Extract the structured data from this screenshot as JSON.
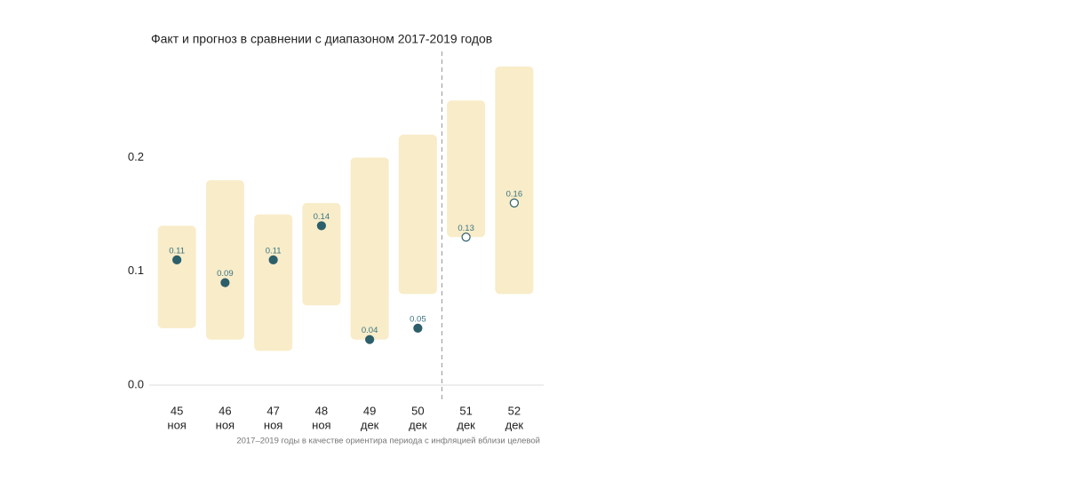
{
  "chart_data": {
    "type": "range",
    "title": "Факт и прогноз в сравнении с диапазоном 2017-2019 годов",
    "footnote": "2017–2019 годы в качестве ориентира периода с инфляцией вблизи целевой",
    "categories": [
      "45",
      "46",
      "47",
      "48",
      "49",
      "50",
      "51",
      "52"
    ],
    "category_months": [
      "ноя",
      "ноя",
      "ноя",
      "ноя",
      "дек",
      "дек",
      "дек",
      "дек"
    ],
    "range_low": [
      0.05,
      0.04,
      0.03,
      0.07,
      0.04,
      0.08,
      0.13,
      0.08
    ],
    "range_high": [
      0.14,
      0.18,
      0.15,
      0.16,
      0.2,
      0.22,
      0.25,
      0.28
    ],
    "range_color": "#f8ecc9",
    "actual": [
      0.11,
      0.09,
      0.11,
      0.14,
      0.04,
      0.05,
      null,
      null
    ],
    "forecast": [
      null,
      null,
      null,
      null,
      null,
      null,
      0.13,
      0.16
    ],
    "point_color": "#2d5f6b",
    "ylim": [
      0,
      0.29
    ],
    "yticks": [
      {
        "value": 0,
        "label": "0.0"
      },
      0.1,
      0.2
    ]
  }
}
